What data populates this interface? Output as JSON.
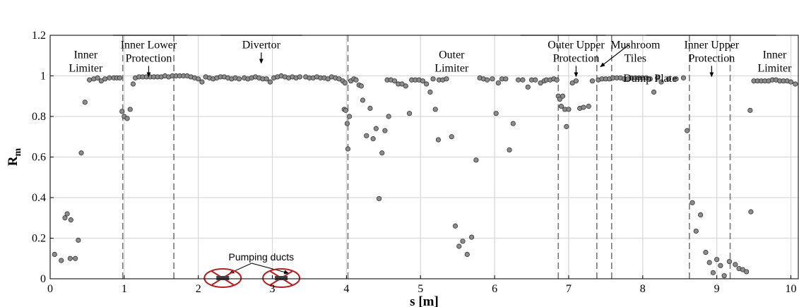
{
  "chart_data": {
    "type": "scatter",
    "title": "",
    "xlabel": "s [m]",
    "ylabel": "R",
    "ylabel_sub": "m",
    "xlim": [
      0,
      10.1
    ],
    "ylim": [
      0,
      1.2
    ],
    "x_ticks": [
      0,
      1,
      2,
      3,
      4,
      5,
      6,
      7,
      8,
      9,
      10
    ],
    "y_ticks": [
      0,
      0.2,
      0.4,
      0.6,
      0.8,
      1,
      1.2
    ],
    "y_tick_labels": [
      "0",
      "0.2",
      "0.4",
      "0.6",
      "0.8",
      "1",
      "1.2"
    ],
    "grid": true,
    "colors": {
      "marker_fill": "#8c8c8c",
      "marker_edge": "#333333",
      "grid": "#d9d9d9",
      "dashed": "#777777",
      "duct": "#b22222"
    },
    "boundaries": [
      0.98,
      1.67,
      4.02,
      6.86,
      7.38,
      7.58,
      8.63,
      9.18
    ],
    "regions": [
      {
        "lines": [
          "Inner",
          "Limiter"
        ],
        "x": 0.48,
        "y": 1.135
      },
      {
        "lines": [
          "Inner Lower",
          "Protection"
        ],
        "x": 1.33,
        "y": 1.185,
        "bar": [
          0.85,
          1.85
        ],
        "arrow_x": 1.33
      },
      {
        "lines": [
          "Divertor"
        ],
        "x": 2.85,
        "y": 1.185,
        "bar": [
          2.3,
          3.4
        ],
        "arrow_x": 2.85
      },
      {
        "lines": [
          "Outer",
          "Limiter"
        ],
        "x": 5.42,
        "y": 1.135
      },
      {
        "lines": [
          "Outer Upper",
          "Protection"
        ],
        "x": 7.1,
        "y": 1.185,
        "bar": [
          6.35,
          7.5
        ],
        "arrow_x": 7.1
      },
      {
        "lines": [
          "Mushroom",
          "Tiles"
        ],
        "x": 7.9,
        "y": 1.185,
        "arrow_from": [
          7.82,
          1.155
        ],
        "arrow_to": [
          7.43,
          1.045
        ]
      },
      {
        "lines": [
          "Dump Plate"
        ],
        "x": 8.1,
        "y": 1.02
      },
      {
        "lines": [
          "Inner Upper",
          "Protection"
        ],
        "x": 8.93,
        "y": 1.185,
        "bar": [
          8.05,
          9.8
        ],
        "arrow_x": 8.93
      },
      {
        "lines": [
          "Inner",
          "Limiter"
        ],
        "x": 9.78,
        "y": 1.135
      }
    ],
    "ducts": {
      "label": "Pumping ducts",
      "centers": [
        2.33,
        3.12
      ]
    },
    "points": [
      [
        0.06,
        0.12
      ],
      [
        0.15,
        0.09
      ],
      [
        0.2,
        0.3
      ],
      [
        0.23,
        0.32
      ],
      [
        0.27,
        0.1
      ],
      [
        0.28,
        0.29
      ],
      [
        0.34,
        0.1
      ],
      [
        0.38,
        0.19
      ],
      [
        0.42,
        0.62
      ],
      [
        0.47,
        0.87
      ],
      [
        0.53,
        0.98
      ],
      [
        0.59,
        0.985
      ],
      [
        0.64,
        0.99
      ],
      [
        0.69,
        0.975
      ],
      [
        0.74,
        0.985
      ],
      [
        0.8,
        0.99
      ],
      [
        0.86,
        0.99
      ],
      [
        0.9,
        0.99
      ],
      [
        0.94,
        0.99
      ],
      [
        0.97,
        0.825
      ],
      [
        1.0,
        0.8
      ],
      [
        1.04,
        0.79
      ],
      [
        1.08,
        0.835
      ],
      [
        1.12,
        0.96
      ],
      [
        1.15,
        0.99
      ],
      [
        1.2,
        0.995
      ],
      [
        1.25,
        0.995
      ],
      [
        1.3,
        0.995
      ],
      [
        1.35,
        0.995
      ],
      [
        1.4,
        0.995
      ],
      [
        1.45,
        0.995
      ],
      [
        1.5,
        0.995
      ],
      [
        1.55,
        1.0
      ],
      [
        1.6,
        0.995
      ],
      [
        1.65,
        1.0
      ],
      [
        1.7,
        1.0
      ],
      [
        1.75,
        1.0
      ],
      [
        1.8,
        1.0
      ],
      [
        1.85,
        1.0
      ],
      [
        1.9,
        0.995
      ],
      [
        1.95,
        0.99
      ],
      [
        2.0,
        0.985
      ],
      [
        2.05,
        0.97
      ],
      [
        2.1,
        0.995
      ],
      [
        2.15,
        0.99
      ],
      [
        2.2,
        0.985
      ],
      [
        2.25,
        0.99
      ],
      [
        2.3,
        0.995
      ],
      [
        2.35,
        0.995
      ],
      [
        2.4,
        0.99
      ],
      [
        2.45,
        0.985
      ],
      [
        2.5,
        0.99
      ],
      [
        2.55,
        0.985
      ],
      [
        2.62,
        0.99
      ],
      [
        2.67,
        0.985
      ],
      [
        2.72,
        0.99
      ],
      [
        2.77,
        0.995
      ],
      [
        2.82,
        0.99
      ],
      [
        2.87,
        0.985
      ],
      [
        2.92,
        0.985
      ],
      [
        2.97,
        0.97
      ],
      [
        3.02,
        0.99
      ],
      [
        3.07,
        0.995
      ],
      [
        3.12,
        1.0
      ],
      [
        3.17,
        0.995
      ],
      [
        3.22,
        0.99
      ],
      [
        3.27,
        0.995
      ],
      [
        3.32,
        0.99
      ],
      [
        3.37,
        0.995
      ],
      [
        3.45,
        0.995
      ],
      [
        3.5,
        0.99
      ],
      [
        3.55,
        0.99
      ],
      [
        3.6,
        0.995
      ],
      [
        3.65,
        0.99
      ],
      [
        3.7,
        0.99
      ],
      [
        3.75,
        0.985
      ],
      [
        3.8,
        0.995
      ],
      [
        3.85,
        0.99
      ],
      [
        3.9,
        0.985
      ],
      [
        3.95,
        0.975
      ],
      [
        3.98,
        0.965
      ],
      [
        3.97,
        0.835
      ],
      [
        3.99,
        0.83
      ],
      [
        4.01,
        0.765
      ],
      [
        4.02,
        0.64
      ],
      [
        4.04,
        0.8
      ],
      [
        4.06,
        0.975
      ],
      [
        4.1,
        0.985
      ],
      [
        4.13,
        0.98
      ],
      [
        4.17,
        0.955
      ],
      [
        4.2,
        0.95
      ],
      [
        4.22,
        0.88
      ],
      [
        4.27,
        0.705
      ],
      [
        4.32,
        0.84
      ],
      [
        4.36,
        0.69
      ],
      [
        4.4,
        0.74
      ],
      [
        4.44,
        0.395
      ],
      [
        4.48,
        0.62
      ],
      [
        4.52,
        0.73
      ],
      [
        4.57,
        0.8
      ],
      [
        4.55,
        0.98
      ],
      [
        4.6,
        0.98
      ],
      [
        4.65,
        0.975
      ],
      [
        4.7,
        0.96
      ],
      [
        4.75,
        0.96
      ],
      [
        4.8,
        0.95
      ],
      [
        4.88,
        0.98
      ],
      [
        4.93,
        0.98
      ],
      [
        4.98,
        0.98
      ],
      [
        5.03,
        0.975
      ],
      [
        5.08,
        0.96
      ],
      [
        5.13,
        0.92
      ],
      [
        5.17,
        0.985
      ],
      [
        5.25,
        0.98
      ],
      [
        5.3,
        0.98
      ],
      [
        5.35,
        0.985
      ],
      [
        4.85,
        0.815
      ],
      [
        5.2,
        0.835
      ],
      [
        5.24,
        0.685
      ],
      [
        5.42,
        0.7
      ],
      [
        5.47,
        0.26
      ],
      [
        5.52,
        0.16
      ],
      [
        5.57,
        0.185
      ],
      [
        5.63,
        0.12
      ],
      [
        5.69,
        0.205
      ],
      [
        5.75,
        0.585
      ],
      [
        5.8,
        0.99
      ],
      [
        5.85,
        0.985
      ],
      [
        5.9,
        0.98
      ],
      [
        5.97,
        0.985
      ],
      [
        6.02,
        0.815
      ],
      [
        6.05,
        0.965
      ],
      [
        6.1,
        0.985
      ],
      [
        6.15,
        0.985
      ],
      [
        6.2,
        0.635
      ],
      [
        6.25,
        0.765
      ],
      [
        6.32,
        0.98
      ],
      [
        6.38,
        0.98
      ],
      [
        6.45,
        0.945
      ],
      [
        6.5,
        0.98
      ],
      [
        6.55,
        0.98
      ],
      [
        6.62,
        0.965
      ],
      [
        6.67,
        0.975
      ],
      [
        6.7,
        0.98
      ],
      [
        6.75,
        0.98
      ],
      [
        6.8,
        0.985
      ],
      [
        6.84,
        0.98
      ],
      [
        6.86,
        0.9
      ],
      [
        6.88,
        0.885
      ],
      [
        6.9,
        0.85
      ],
      [
        6.92,
        0.9
      ],
      [
        6.95,
        0.835
      ],
      [
        6.97,
        0.75
      ],
      [
        7.0,
        0.835
      ],
      [
        7.05,
        0.965
      ],
      [
        7.1,
        0.975
      ],
      [
        7.15,
        0.84
      ],
      [
        7.2,
        0.845
      ],
      [
        7.27,
        0.85
      ],
      [
        7.32,
        0.975
      ],
      [
        7.4,
        0.98
      ],
      [
        7.45,
        0.985
      ],
      [
        7.5,
        0.985
      ],
      [
        7.55,
        0.985
      ],
      [
        7.6,
        0.99
      ],
      [
        7.65,
        0.99
      ],
      [
        7.7,
        0.99
      ],
      [
        7.75,
        0.985
      ],
      [
        7.8,
        0.985
      ],
      [
        7.85,
        0.99
      ],
      [
        7.9,
        0.99
      ],
      [
        7.95,
        0.99
      ],
      [
        8.0,
        0.99
      ],
      [
        8.05,
        0.99
      ],
      [
        8.1,
        0.985
      ],
      [
        8.15,
        0.92
      ],
      [
        8.2,
        0.99
      ],
      [
        8.25,
        0.97
      ],
      [
        8.35,
        0.985
      ],
      [
        8.45,
        0.985
      ],
      [
        8.55,
        0.99
      ],
      [
        8.6,
        0.73
      ],
      [
        8.67,
        0.375
      ],
      [
        8.72,
        0.235
      ],
      [
        8.78,
        0.315
      ],
      [
        8.85,
        0.13
      ],
      [
        8.9,
        0.08
      ],
      [
        8.95,
        0.03
      ],
      [
        9.0,
        0.095
      ],
      [
        9.05,
        0.065
      ],
      [
        9.1,
        0.015
      ],
      [
        9.17,
        0.085
      ],
      [
        9.25,
        0.07
      ],
      [
        9.3,
        0.05
      ],
      [
        9.35,
        0.045
      ],
      [
        9.4,
        0.035
      ],
      [
        9.45,
        0.83
      ],
      [
        9.46,
        0.33
      ],
      [
        9.5,
        0.975
      ],
      [
        9.55,
        0.975
      ],
      [
        9.6,
        0.975
      ],
      [
        9.65,
        0.975
      ],
      [
        9.7,
        0.975
      ],
      [
        9.75,
        0.98
      ],
      [
        9.8,
        0.98
      ],
      [
        9.85,
        0.975
      ],
      [
        9.9,
        0.975
      ],
      [
        9.95,
        0.975
      ],
      [
        10.0,
        0.97
      ],
      [
        10.06,
        0.96
      ]
    ]
  }
}
